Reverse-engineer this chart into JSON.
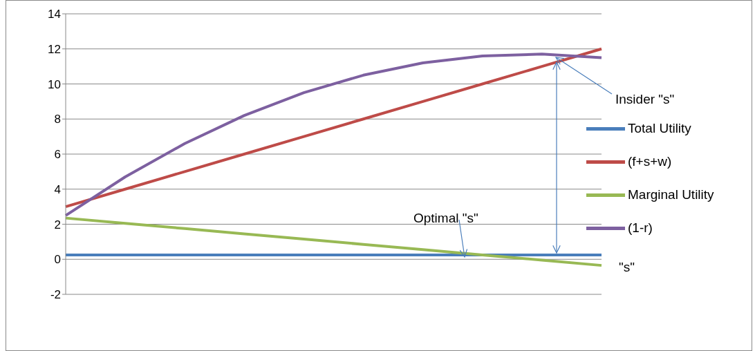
{
  "chart_data": {
    "type": "line",
    "categories": [
      null,
      null,
      null,
      null,
      null,
      null,
      null,
      null,
      null,
      null
    ],
    "series": [
      {
        "name": "Total Utility",
        "color": "#4a7ebb",
        "values": [
          0.25,
          0.25,
          0.25,
          0.25,
          0.25,
          0.25,
          0.25,
          0.25,
          0.25,
          0.25
        ]
      },
      {
        "name": "(f+s+w)",
        "color": "#be4b48",
        "values": [
          3,
          4,
          5,
          6,
          7,
          8,
          9,
          10,
          11,
          12
        ]
      },
      {
        "name": "Marginal Utility",
        "color": "#98b954",
        "values": [
          2.35,
          2.05,
          1.75,
          1.45,
          1.15,
          0.85,
          0.55,
          0.25,
          -0.05,
          -0.35
        ]
      },
      {
        "name": "(1-r)",
        "color": "#7d60a0",
        "values": [
          2.5,
          4.7,
          6.6,
          8.2,
          9.5,
          10.5,
          11.2,
          11.6,
          11.7,
          11.5
        ]
      }
    ],
    "ylim": [
      -2,
      14
    ],
    "yticks": [
      -2,
      0,
      2,
      4,
      6,
      8,
      10,
      12,
      14
    ],
    "grid": "y",
    "legend": "right",
    "marker": "none",
    "line_style": "solid",
    "annotations": [
      "Insider  \"s\"",
      "Optimal  \"s\"",
      "\"s\""
    ]
  }
}
